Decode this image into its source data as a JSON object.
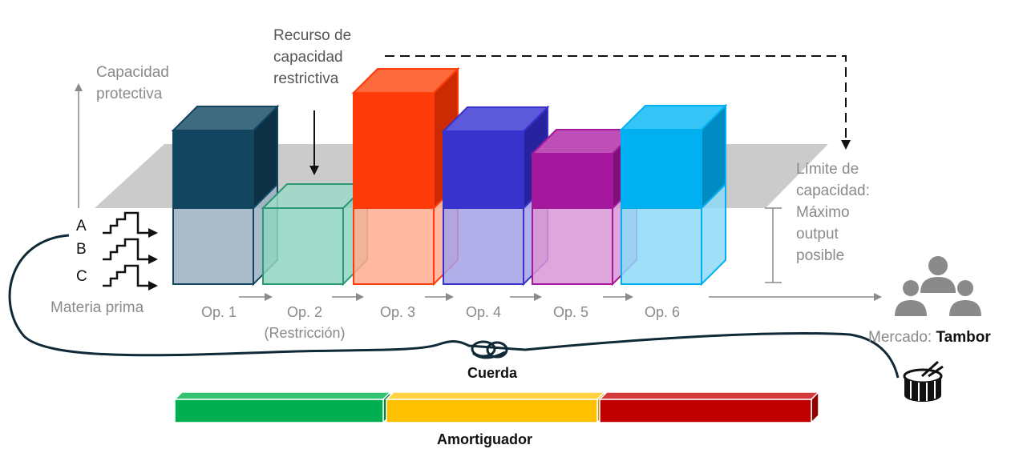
{
  "labels": {
    "protective_capacity": "Capacidad\nprotectiva",
    "constraint_resource": "Recurso de\ncapacidad\nrestrictiva",
    "capacity_limit": "Límite de\ncapacidad:\nMáximo\noutput\nposible",
    "raw_material": "Materia prima",
    "market_prefix": "Mercado: ",
    "market_drum": "Tambor",
    "rope": "Cuerda",
    "buffer": "Amortiguador",
    "inputs": [
      "A",
      "B",
      "C"
    ]
  },
  "operations": [
    {
      "label": "Op. 1",
      "sublabel": "",
      "front": "#124660",
      "top": "#3f6a80",
      "side": "#0c3145",
      "lower": "#9bb0bf",
      "lower_stroke": "#124660"
    },
    {
      "label": "Op. 2",
      "sublabel": "(Restricción)",
      "front": "#8fd3bf",
      "top": "#9fd9c8",
      "side": "#78c3ab",
      "lower": "#8fd3bf",
      "lower_stroke": "#2a9a76"
    },
    {
      "label": "Op. 3",
      "sublabel": "",
      "front": "#ff3b0a",
      "top": "#ff6a3d",
      "side": "#cc2a00",
      "lower": "#ffab92",
      "lower_stroke": "#ff3b0a"
    },
    {
      "label": "Op. 4",
      "sublabel": "",
      "front": "#3733cc",
      "top": "#5c59da",
      "side": "#27239e",
      "lower": "#a3a2e8",
      "lower_stroke": "#3733cc"
    },
    {
      "label": "Op. 5",
      "sublabel": "",
      "front": "#a5189e",
      "top": "#bd4fb7",
      "side": "#7f1079",
      "lower": "#d897d4",
      "lower_stroke": "#a5189e"
    },
    {
      "label": "Op. 6",
      "sublabel": "",
      "front": "#00b0f0",
      "top": "#36c3f5",
      "side": "#008cc2",
      "lower": "#8fd9f7",
      "lower_stroke": "#00b0f0"
    }
  ],
  "buffer_segments": [
    {
      "name": "green",
      "color": "#00b050",
      "top": "#33c173",
      "side": "#00853c"
    },
    {
      "name": "yellow",
      "color": "#ffc000",
      "top": "#ffd040",
      "side": "#c89600"
    },
    {
      "name": "red",
      "color": "#c00000",
      "top": "#d43a3a",
      "side": "#8f0000"
    }
  ],
  "colors": {
    "plane": "#c8c8c8",
    "gray_arrow": "#8a8a8a",
    "rope": "#0f2a36",
    "icon": "#8a8a8a"
  }
}
